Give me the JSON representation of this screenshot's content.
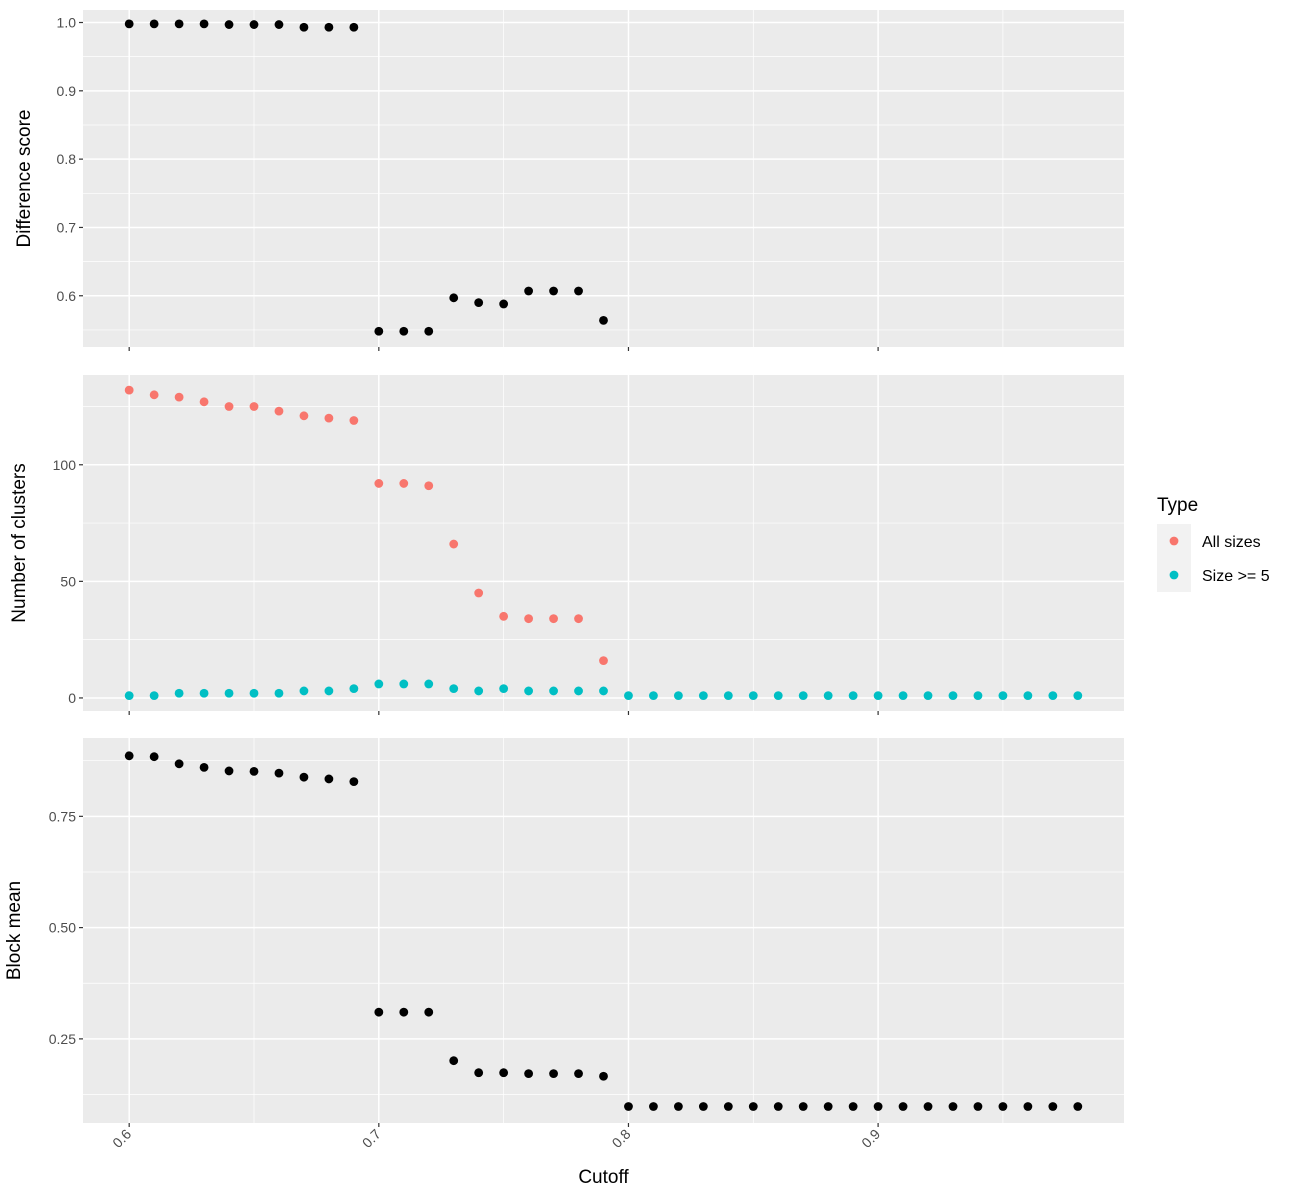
{
  "chart_data": {
    "type": "scatter",
    "xlabel": "Cutoff",
    "x_ticks": [
      0.6,
      0.7,
      0.8,
      0.9
    ],
    "x_tick_labels": [
      "0.6",
      "0.7",
      "0.8",
      "0.9"
    ],
    "xlim": [
      0.5815,
      0.9985
    ],
    "legend": {
      "title": "Type",
      "position": "right",
      "items": [
        {
          "label": "All sizes",
          "color": "#F8766D"
        },
        {
          "label": "Size >= 5",
          "color": "#00BFC4"
        }
      ]
    },
    "panels": [
      {
        "id": "difference",
        "ylabel": "Difference score",
        "ylim": [
          0.525,
          1.0183
        ],
        "y_ticks": [
          0.6,
          0.7,
          0.8,
          0.9,
          1.0
        ],
        "y_tick_labels": [
          "0.6",
          "0.7",
          "0.8",
          "0.9",
          "1.0"
        ],
        "series": [
          {
            "color": "#000000",
            "x": [
              0.6,
              0.61,
              0.62,
              0.63,
              0.64,
              0.65,
              0.66,
              0.67,
              0.68,
              0.69,
              0.7,
              0.71,
              0.72,
              0.73,
              0.74,
              0.75,
              0.76,
              0.77,
              0.78,
              0.79
            ],
            "y": [
              0.998,
              0.998,
              0.998,
              0.998,
              0.997,
              0.997,
              0.997,
              0.993,
              0.993,
              0.993,
              0.548,
              0.548,
              0.548,
              0.597,
              0.59,
              0.588,
              0.607,
              0.607,
              0.607,
              0.564
            ]
          }
        ]
      },
      {
        "id": "clusters",
        "ylabel": "Number of clusters",
        "ylim": [
          -5.6,
          138.5
        ],
        "y_ticks": [
          0,
          50,
          100
        ],
        "y_tick_labels": [
          "0",
          "50",
          "100"
        ],
        "series": [
          {
            "name": "All sizes",
            "color": "#F8766D",
            "x": [
              0.6,
              0.61,
              0.62,
              0.63,
              0.64,
              0.65,
              0.66,
              0.67,
              0.68,
              0.69,
              0.7,
              0.71,
              0.72,
              0.73,
              0.74,
              0.75,
              0.76,
              0.77,
              0.78,
              0.79
            ],
            "y": [
              132,
              130,
              129,
              127,
              125,
              125,
              123,
              121,
              120,
              119,
              92,
              92,
              91,
              66,
              45,
              35,
              34,
              34,
              34,
              16
            ]
          },
          {
            "name": "Size >= 5",
            "color": "#00BFC4",
            "x": [
              0.6,
              0.61,
              0.62,
              0.63,
              0.64,
              0.65,
              0.66,
              0.67,
              0.68,
              0.69,
              0.7,
              0.71,
              0.72,
              0.73,
              0.74,
              0.75,
              0.76,
              0.77,
              0.78,
              0.79,
              0.8,
              0.81,
              0.82,
              0.83,
              0.84,
              0.85,
              0.86,
              0.87,
              0.88,
              0.89,
              0.9,
              0.91,
              0.92,
              0.93,
              0.94,
              0.95,
              0.96,
              0.97,
              0.98
            ],
            "y": [
              1,
              1,
              2,
              2,
              2,
              2,
              2,
              3,
              3,
              4,
              6,
              6,
              6,
              4,
              3,
              4,
              3,
              3,
              3,
              3,
              1,
              1,
              1,
              1,
              1,
              1,
              1,
              1,
              1,
              1,
              1,
              1,
              1,
              1,
              1,
              1,
              1,
              1,
              1
            ]
          }
        ]
      },
      {
        "id": "block",
        "ylabel": "Block mean",
        "ylim": [
          0.061,
          0.926
        ],
        "y_ticks": [
          0.25,
          0.5,
          0.75
        ],
        "y_tick_labels": [
          "0.25",
          "0.50",
          "0.75"
        ],
        "series": [
          {
            "color": "#000000",
            "x": [
              0.6,
              0.61,
              0.62,
              0.63,
              0.64,
              0.65,
              0.66,
              0.67,
              0.68,
              0.69,
              0.7,
              0.71,
              0.72,
              0.73,
              0.74,
              0.75,
              0.76,
              0.77,
              0.78,
              0.79,
              0.8,
              0.81,
              0.82,
              0.83,
              0.84,
              0.85,
              0.86,
              0.87,
              0.88,
              0.89,
              0.9,
              0.91,
              0.92,
              0.93,
              0.94,
              0.95,
              0.96,
              0.97,
              0.98
            ],
            "y": [
              0.886,
              0.884,
              0.868,
              0.86,
              0.852,
              0.851,
              0.847,
              0.838,
              0.834,
              0.828,
              0.31,
              0.31,
              0.31,
              0.201,
              0.174,
              0.174,
              0.172,
              0.172,
              0.172,
              0.166,
              0.098,
              0.098,
              0.098,
              0.098,
              0.098,
              0.098,
              0.098,
              0.098,
              0.098,
              0.098,
              0.098,
              0.098,
              0.098,
              0.098,
              0.098,
              0.098,
              0.098,
              0.098,
              0.098
            ]
          }
        ]
      }
    ]
  }
}
